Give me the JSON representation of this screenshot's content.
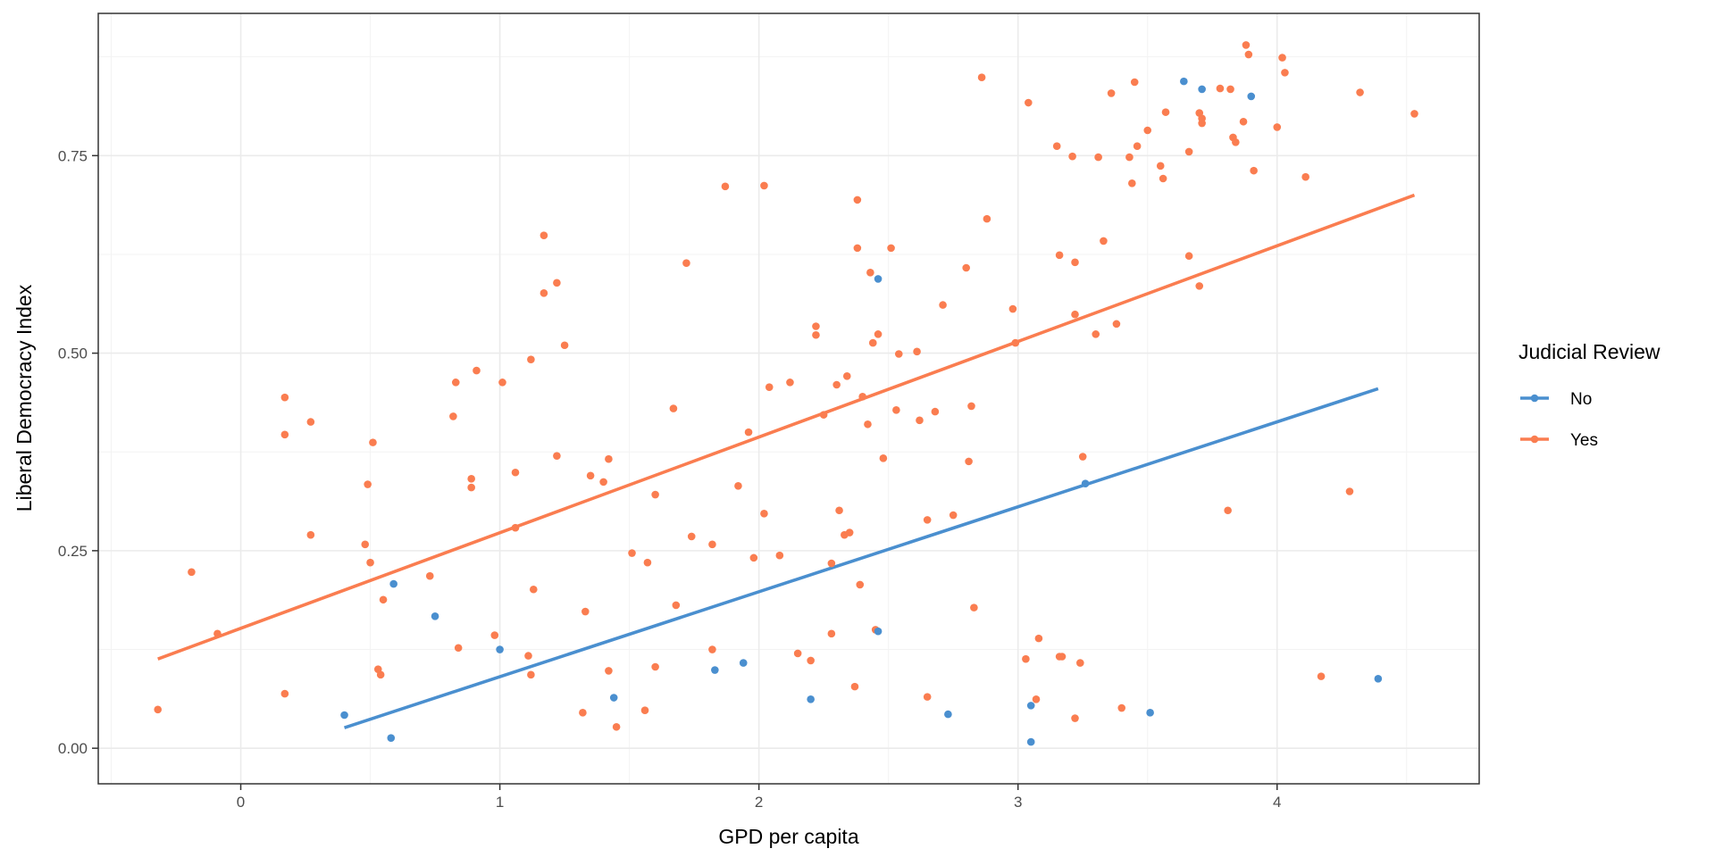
{
  "chart_data": {
    "type": "scatter",
    "xlabel": "GPD per capita",
    "ylabel": "Liberal Democracy Index",
    "xlim": [
      -0.55,
      4.78
    ],
    "ylim": [
      -0.045,
      0.93
    ],
    "xticks": [
      0,
      1,
      2,
      3,
      4
    ],
    "xtick_labels": [
      "0",
      "1",
      "2",
      "3",
      "4"
    ],
    "yticks": [
      0.0,
      0.25,
      0.5,
      0.75
    ],
    "ytick_labels": [
      "0.00",
      "0.25",
      "0.50",
      "0.75"
    ],
    "grid": true,
    "legend": {
      "title": "Judicial Review",
      "position": "right"
    },
    "series": [
      {
        "name": "No",
        "color": "#4a8fcf",
        "points": [
          [
            0.4,
            0.042
          ],
          [
            0.59,
            0.208
          ],
          [
            0.58,
            0.013
          ],
          [
            0.75,
            0.167
          ],
          [
            1.0,
            0.125
          ],
          [
            1.44,
            0.064
          ],
          [
            1.83,
            0.099
          ],
          [
            1.94,
            0.108
          ],
          [
            2.2,
            0.062
          ],
          [
            2.46,
            0.148
          ],
          [
            2.46,
            0.594
          ],
          [
            2.73,
            0.043
          ],
          [
            3.05,
            0.054
          ],
          [
            3.05,
            0.008
          ],
          [
            3.26,
            0.335
          ],
          [
            3.51,
            0.045
          ],
          [
            3.64,
            0.844
          ],
          [
            3.71,
            0.834
          ],
          [
            3.9,
            0.825
          ],
          [
            4.39,
            0.088
          ]
        ],
        "fit": [
          [
            0.4,
            0.026
          ],
          [
            4.39,
            0.455
          ]
        ]
      },
      {
        "name": "Yes",
        "color": "#fa7d50",
        "points": [
          [
            -0.32,
            0.049
          ],
          [
            -0.19,
            0.223
          ],
          [
            -0.09,
            0.145
          ],
          [
            0.17,
            0.444
          ],
          [
            0.17,
            0.397
          ],
          [
            0.17,
            0.069
          ],
          [
            0.27,
            0.413
          ],
          [
            0.27,
            0.27
          ],
          [
            0.48,
            0.258
          ],
          [
            0.49,
            0.334
          ],
          [
            0.5,
            0.235
          ],
          [
            0.51,
            0.387
          ],
          [
            0.53,
            0.1
          ],
          [
            0.54,
            0.093
          ],
          [
            0.55,
            0.188
          ],
          [
            0.73,
            0.218
          ],
          [
            0.82,
            0.42
          ],
          [
            0.83,
            0.463
          ],
          [
            0.84,
            0.127
          ],
          [
            0.89,
            0.33
          ],
          [
            0.89,
            0.341
          ],
          [
            0.91,
            0.478
          ],
          [
            0.98,
            0.143
          ],
          [
            1.01,
            0.463
          ],
          [
            1.06,
            0.349
          ],
          [
            1.06,
            0.279
          ],
          [
            1.11,
            0.117
          ],
          [
            1.12,
            0.093
          ],
          [
            1.12,
            0.492
          ],
          [
            1.13,
            0.201
          ],
          [
            1.17,
            0.576
          ],
          [
            1.17,
            0.649
          ],
          [
            1.22,
            0.589
          ],
          [
            1.22,
            0.37
          ],
          [
            1.25,
            0.51
          ],
          [
            1.32,
            0.045
          ],
          [
            1.33,
            0.173
          ],
          [
            1.35,
            0.345
          ],
          [
            1.4,
            0.337
          ],
          [
            1.42,
            0.366
          ],
          [
            1.42,
            0.098
          ],
          [
            1.45,
            0.027
          ],
          [
            1.51,
            0.247
          ],
          [
            1.56,
            0.048
          ],
          [
            1.57,
            0.235
          ],
          [
            1.6,
            0.321
          ],
          [
            1.6,
            0.103
          ],
          [
            1.67,
            0.43
          ],
          [
            1.68,
            0.181
          ],
          [
            1.72,
            0.614
          ],
          [
            1.74,
            0.268
          ],
          [
            1.82,
            0.258
          ],
          [
            1.82,
            0.125
          ],
          [
            1.87,
            0.711
          ],
          [
            1.92,
            0.332
          ],
          [
            1.96,
            0.4
          ],
          [
            1.98,
            0.241
          ],
          [
            2.02,
            0.297
          ],
          [
            2.02,
            0.712
          ],
          [
            2.04,
            0.457
          ],
          [
            2.08,
            0.244
          ],
          [
            2.12,
            0.463
          ],
          [
            2.15,
            0.12
          ],
          [
            2.2,
            0.111
          ],
          [
            2.22,
            0.534
          ],
          [
            2.22,
            0.523
          ],
          [
            2.25,
            0.422
          ],
          [
            2.28,
            0.234
          ],
          [
            2.28,
            0.145
          ],
          [
            2.3,
            0.46
          ],
          [
            2.31,
            0.301
          ],
          [
            2.33,
            0.27
          ],
          [
            2.34,
            0.471
          ],
          [
            2.35,
            0.273
          ],
          [
            2.37,
            0.078
          ],
          [
            2.38,
            0.633
          ],
          [
            2.38,
            0.694
          ],
          [
            2.39,
            0.207
          ],
          [
            2.4,
            0.445
          ],
          [
            2.42,
            0.41
          ],
          [
            2.43,
            0.602
          ],
          [
            2.44,
            0.513
          ],
          [
            2.45,
            0.15
          ],
          [
            2.46,
            0.524
          ],
          [
            2.48,
            0.367
          ],
          [
            2.51,
            0.633
          ],
          [
            2.53,
            0.428
          ],
          [
            2.54,
            0.499
          ],
          [
            2.61,
            0.502
          ],
          [
            2.62,
            0.415
          ],
          [
            2.65,
            0.289
          ],
          [
            2.65,
            0.065
          ],
          [
            2.68,
            0.426
          ],
          [
            2.71,
            0.561
          ],
          [
            2.75,
            0.295
          ],
          [
            2.8,
            0.608
          ],
          [
            2.81,
            0.363
          ],
          [
            2.82,
            0.433
          ],
          [
            2.83,
            0.178
          ],
          [
            2.86,
            0.849
          ],
          [
            2.88,
            0.67
          ],
          [
            2.98,
            0.556
          ],
          [
            2.99,
            0.513
          ],
          [
            3.03,
            0.113
          ],
          [
            3.04,
            0.817
          ],
          [
            3.07,
            0.062
          ],
          [
            3.08,
            0.139
          ],
          [
            3.15,
            0.762
          ],
          [
            3.16,
            0.624
          ],
          [
            3.16,
            0.116
          ],
          [
            3.17,
            0.116
          ],
          [
            3.21,
            0.749
          ],
          [
            3.22,
            0.615
          ],
          [
            3.22,
            0.549
          ],
          [
            3.22,
            0.038
          ],
          [
            3.24,
            0.108
          ],
          [
            3.25,
            0.369
          ],
          [
            3.3,
            0.524
          ],
          [
            3.31,
            0.748
          ],
          [
            3.33,
            0.642
          ],
          [
            3.36,
            0.829
          ],
          [
            3.38,
            0.537
          ],
          [
            3.4,
            0.051
          ],
          [
            3.43,
            0.748
          ],
          [
            3.44,
            0.715
          ],
          [
            3.45,
            0.843
          ],
          [
            3.46,
            0.762
          ],
          [
            3.5,
            0.782
          ],
          [
            3.55,
            0.737
          ],
          [
            3.56,
            0.721
          ],
          [
            3.57,
            0.805
          ],
          [
            3.66,
            0.623
          ],
          [
            3.66,
            0.755
          ],
          [
            3.7,
            0.585
          ],
          [
            3.7,
            0.804
          ],
          [
            3.71,
            0.791
          ],
          [
            3.71,
            0.797
          ],
          [
            3.78,
            0.835
          ],
          [
            3.81,
            0.301
          ],
          [
            3.82,
            0.834
          ],
          [
            3.83,
            0.773
          ],
          [
            3.84,
            0.767
          ],
          [
            3.87,
            0.793
          ],
          [
            3.88,
            0.89
          ],
          [
            3.89,
            0.878
          ],
          [
            3.91,
            0.731
          ],
          [
            4.0,
            0.786
          ],
          [
            4.02,
            0.874
          ],
          [
            4.03,
            0.855
          ],
          [
            4.11,
            0.723
          ],
          [
            4.17,
            0.091
          ],
          [
            4.28,
            0.325
          ],
          [
            4.32,
            0.83
          ],
          [
            4.53,
            0.803
          ]
        ],
        "fit": [
          [
            -0.32,
            0.113
          ],
          [
            4.53,
            0.7
          ]
        ]
      }
    ]
  }
}
